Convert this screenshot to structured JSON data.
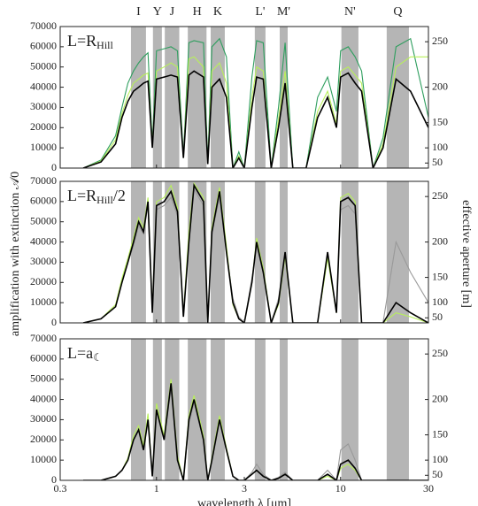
{
  "y_label": "amplification with extinction 𝒜0",
  "y2_label": "effective aperture [m]",
  "x_label": "wavelength λ [μm]",
  "bands": [
    {
      "label": "I",
      "range": [
        0.727,
        0.877
      ]
    },
    {
      "label": "Y",
      "range": [
        0.957,
        1.07
      ]
    },
    {
      "label": "J",
      "range": [
        1.11,
        1.33
      ]
    },
    {
      "label": "H",
      "range": [
        1.48,
        1.87
      ]
    },
    {
      "label": "K",
      "range": [
        1.97,
        2.35
      ]
    },
    {
      "label": "L'",
      "range": [
        3.42,
        3.91
      ]
    },
    {
      "label": "M'",
      "range": [
        4.67,
        5.16
      ]
    },
    {
      "label": "N'",
      "range": [
        10.1,
        12.5
      ]
    },
    {
      "label": "Q",
      "range": [
        17.8,
        23.5
      ]
    }
  ],
  "chart_data": [
    {
      "type": "line",
      "label": {
        "main": "L=R",
        "sub": "Hill",
        "tail": ""
      },
      "xscale": "log",
      "xlim": [
        0.3,
        30
      ],
      "xticks": [
        0.3,
        1,
        3,
        10,
        30
      ],
      "ylim": [
        0,
        70000
      ],
      "yticks": [
        0,
        10000,
        20000,
        30000,
        40000,
        50000,
        60000,
        70000
      ],
      "y2scale": "square",
      "y2lim": [
        0,
        264.6
      ],
      "y2ticks": [
        50,
        100,
        150,
        200,
        250
      ],
      "x": [
        0.4,
        0.5,
        0.6,
        0.65,
        0.7,
        0.75,
        0.8,
        0.85,
        0.9,
        0.95,
        1.0,
        1.1,
        1.2,
        1.3,
        1.4,
        1.5,
        1.6,
        1.8,
        1.9,
        2.0,
        2.2,
        2.4,
        2.6,
        2.8,
        3.0,
        3.3,
        3.5,
        3.8,
        4.2,
        4.6,
        5.0,
        5.5,
        6.5,
        7.5,
        8.5,
        9.5,
        10,
        11,
        12,
        13,
        15,
        17,
        20,
        24,
        30
      ],
      "series": [
        {
          "color": "#2e9e5e",
          "values": [
            0,
            4000,
            16000,
            30000,
            42000,
            48000,
            52000,
            55000,
            57000,
            12000,
            58000,
            59000,
            60000,
            58000,
            6000,
            62000,
            63000,
            62000,
            3000,
            60000,
            64000,
            55000,
            0,
            8000,
            0,
            45000,
            63000,
            62000,
            0,
            30000,
            62000,
            0,
            0,
            35000,
            45000,
            28000,
            58000,
            60000,
            55000,
            48000,
            0,
            15000,
            60000,
            64000,
            25000
          ]
        },
        {
          "color": "#b8f05a",
          "values": [
            0,
            3500,
            14000,
            27000,
            36000,
            42000,
            44000,
            46000,
            47000,
            11000,
            48000,
            50000,
            52000,
            50000,
            5000,
            54000,
            55000,
            50000,
            2500,
            48000,
            52000,
            42000,
            0,
            6000,
            0,
            35000,
            50000,
            48000,
            0,
            24000,
            48000,
            0,
            0,
            28000,
            38000,
            22000,
            48000,
            50000,
            46000,
            42000,
            0,
            12000,
            50000,
            55000,
            55000
          ]
        },
        {
          "color": "#000000",
          "values": [
            0,
            3000,
            12000,
            25000,
            33000,
            38000,
            40000,
            42000,
            43000,
            10000,
            44000,
            45000,
            46000,
            45000,
            5000,
            46000,
            48000,
            45000,
            2000,
            40000,
            44000,
            35000,
            0,
            5000,
            0,
            30000,
            45000,
            44000,
            0,
            20000,
            42000,
            0,
            0,
            25000,
            35000,
            20000,
            45000,
            47000,
            42000,
            38000,
            0,
            10000,
            44000,
            38000,
            20000
          ]
        }
      ]
    },
    {
      "type": "line",
      "label": {
        "main": "L=R",
        "sub": "Hill",
        "tail": "/2"
      },
      "xscale": "log",
      "xlim": [
        0.3,
        30
      ],
      "xticks": [
        0.3,
        1,
        3,
        10,
        30
      ],
      "ylim": [
        0,
        70000
      ],
      "yticks": [
        0,
        10000,
        20000,
        30000,
        40000,
        50000,
        60000,
        70000
      ],
      "y2scale": "square",
      "y2lim": [
        0,
        264.6
      ],
      "y2ticks": [
        50,
        100,
        150,
        200,
        250
      ],
      "x": [
        0.4,
        0.5,
        0.6,
        0.65,
        0.7,
        0.75,
        0.8,
        0.85,
        0.9,
        0.95,
        1.0,
        1.1,
        1.2,
        1.3,
        1.4,
        1.5,
        1.6,
        1.8,
        1.9,
        2.0,
        2.2,
        2.4,
        2.6,
        2.8,
        3.0,
        3.3,
        3.5,
        3.8,
        4.2,
        4.6,
        5.0,
        5.5,
        6.5,
        7.5,
        8.5,
        9.5,
        10,
        11,
        12,
        13,
        15,
        17,
        20,
        24,
        30
      ],
      "series": [
        {
          "color": "#999999",
          "values": [
            0,
            2000,
            8000,
            20000,
            30000,
            38000,
            48000,
            44000,
            58000,
            5000,
            56000,
            58000,
            62000,
            53000,
            3000,
            40000,
            66000,
            58000,
            0,
            44000,
            62000,
            35000,
            12000,
            3000,
            0,
            22000,
            38000,
            25000,
            0,
            12000,
            35000,
            0,
            0,
            0,
            33000,
            6000,
            56000,
            58000,
            54000,
            0,
            0,
            0,
            40000,
            25000,
            10000
          ]
        },
        {
          "color": "#b8f05a",
          "values": [
            0,
            2000,
            9000,
            22000,
            32000,
            42000,
            52000,
            47000,
            62000,
            6000,
            60000,
            62000,
            68000,
            57000,
            4000,
            45000,
            69000,
            62000,
            0,
            47000,
            67000,
            38000,
            9000,
            2000,
            0,
            20000,
            42000,
            27000,
            0,
            9000,
            33000,
            0,
            0,
            0,
            32000,
            5000,
            62000,
            64000,
            60000,
            0,
            0,
            0,
            5000,
            3000,
            0
          ]
        },
        {
          "color": "#000000",
          "values": [
            0,
            2000,
            8000,
            20000,
            30000,
            40000,
            50000,
            45000,
            60000,
            5000,
            58000,
            60000,
            65000,
            55000,
            3000,
            40000,
            68000,
            60000,
            0,
            45000,
            65000,
            35000,
            10000,
            2000,
            0,
            20000,
            40000,
            25000,
            0,
            10000,
            35000,
            0,
            0,
            0,
            35000,
            5000,
            60000,
            62000,
            58000,
            0,
            0,
            0,
            10000,
            5000,
            0
          ]
        }
      ]
    },
    {
      "type": "line",
      "label": {
        "main": "L=a",
        "sub": "☾",
        "tail": ""
      },
      "xscale": "log",
      "xlim": [
        0.3,
        30
      ],
      "xticks": [
        0.3,
        1,
        3,
        10,
        30
      ],
      "ylim": [
        0,
        70000
      ],
      "yticks": [
        0,
        10000,
        20000,
        30000,
        40000,
        50000,
        60000,
        70000
      ],
      "y2scale": "square",
      "y2lim": [
        0,
        264.6
      ],
      "y2ticks": [
        50,
        100,
        150,
        200,
        250
      ],
      "x": [
        0.4,
        0.5,
        0.6,
        0.65,
        0.7,
        0.75,
        0.8,
        0.85,
        0.9,
        0.95,
        1.0,
        1.1,
        1.2,
        1.3,
        1.4,
        1.5,
        1.6,
        1.8,
        1.9,
        2.0,
        2.2,
        2.4,
        2.6,
        2.8,
        3.0,
        3.3,
        3.5,
        3.8,
        4.2,
        4.6,
        5.0,
        5.5,
        6.5,
        7.5,
        8.5,
        9.5,
        10,
        11,
        12,
        13,
        15,
        17,
        20,
        24,
        30
      ],
      "series": [
        {
          "color": "#999999",
          "values": [
            0,
            0,
            2000,
            5000,
            10000,
            20000,
            25000,
            15000,
            30000,
            2000,
            35000,
            20000,
            45000,
            10000,
            0,
            28000,
            38000,
            20000,
            0,
            10000,
            30000,
            15000,
            2000,
            0,
            0,
            4000,
            8000,
            3000,
            0,
            1500,
            4000,
            0,
            0,
            0,
            5000,
            0,
            15000,
            18000,
            10000,
            0,
            0,
            0,
            0,
            0,
            0
          ]
        },
        {
          "color": "#b8f05a",
          "values": [
            0,
            0,
            2000,
            5000,
            11000,
            22000,
            27000,
            17000,
            33000,
            2000,
            38000,
            22000,
            50000,
            12000,
            0,
            32000,
            42000,
            22000,
            0,
            11000,
            32000,
            16000,
            2000,
            0,
            0,
            3000,
            5000,
            2000,
            0,
            1000,
            3000,
            0,
            0,
            0,
            2000,
            0,
            6000,
            8000,
            5000,
            0,
            0,
            0,
            0,
            0,
            0
          ]
        },
        {
          "color": "#000000",
          "values": [
            0,
            0,
            2000,
            5000,
            10000,
            20000,
            25000,
            15000,
            30000,
            2000,
            35000,
            20000,
            48000,
            10000,
            0,
            30000,
            40000,
            20000,
            0,
            10000,
            30000,
            15000,
            2000,
            0,
            0,
            3000,
            5000,
            2000,
            0,
            1000,
            3000,
            0,
            0,
            0,
            3000,
            0,
            8000,
            10000,
            6000,
            0,
            0,
            0,
            0,
            0,
            0
          ]
        }
      ]
    }
  ]
}
